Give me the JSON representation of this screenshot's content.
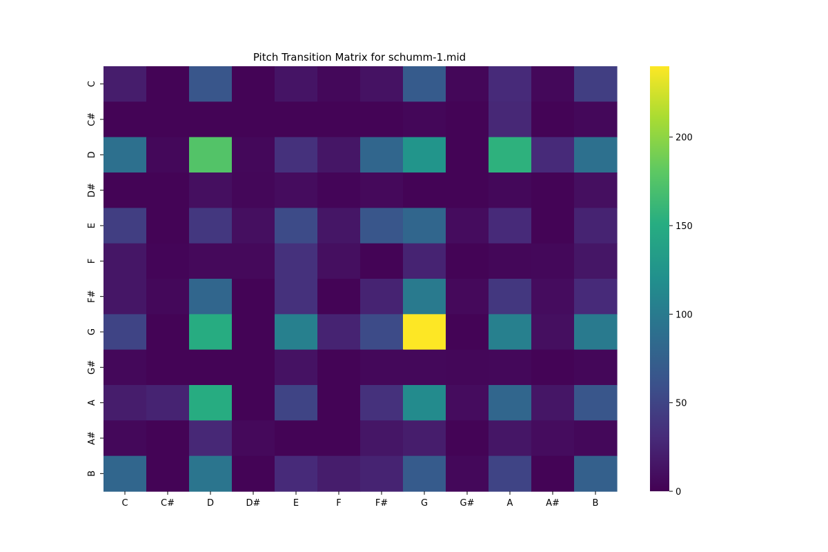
{
  "chart_data": {
    "type": "heatmap",
    "title": "Pitch Transition Matrix for schumm-1.mid",
    "xlabel": "",
    "ylabel": "",
    "x_categories": [
      "C",
      "C#",
      "D",
      "D#",
      "E",
      "F",
      "F#",
      "G",
      "G#",
      "A",
      "A#",
      "B"
    ],
    "y_categories": [
      "C",
      "C#",
      "D",
      "D#",
      "E",
      "F",
      "F#",
      "G",
      "G#",
      "A",
      "A#",
      "B"
    ],
    "values": [
      [
        20,
        2,
        65,
        2,
        14,
        5,
        12,
        70,
        4,
        30,
        5,
        45
      ],
      [
        2,
        2,
        2,
        2,
        2,
        2,
        2,
        4,
        2,
        28,
        2,
        5
      ],
      [
        90,
        5,
        175,
        5,
        35,
        15,
        80,
        125,
        2,
        155,
        30,
        90
      ],
      [
        2,
        2,
        10,
        4,
        8,
        3,
        6,
        2,
        2,
        5,
        2,
        10
      ],
      [
        45,
        2,
        40,
        10,
        55,
        15,
        65,
        80,
        8,
        30,
        2,
        25
      ],
      [
        15,
        3,
        6,
        6,
        35,
        10,
        2,
        25,
        2,
        4,
        5,
        15
      ],
      [
        15,
        5,
        80,
        2,
        35,
        2,
        25,
        100,
        6,
        40,
        8,
        30
      ],
      [
        50,
        2,
        150,
        2,
        105,
        25,
        55,
        240,
        2,
        105,
        10,
        100
      ],
      [
        5,
        2,
        2,
        2,
        12,
        2,
        5,
        5,
        4,
        5,
        2,
        4
      ],
      [
        20,
        25,
        150,
        2,
        50,
        2,
        35,
        115,
        8,
        80,
        15,
        65
      ],
      [
        5,
        2,
        28,
        6,
        2,
        2,
        15,
        20,
        2,
        15,
        8,
        5
      ],
      [
        80,
        2,
        95,
        2,
        30,
        20,
        25,
        70,
        5,
        50,
        2,
        75
      ]
    ],
    "colorscale": "viridis",
    "vmin": 0,
    "vmax": 240,
    "colorbar_ticks": [
      0,
      50,
      100,
      150,
      200
    ],
    "colorbar_tick_labels": [
      "0",
      "50",
      "100",
      "150",
      "200"
    ],
    "grid": false,
    "legend": "colorbar-right"
  }
}
